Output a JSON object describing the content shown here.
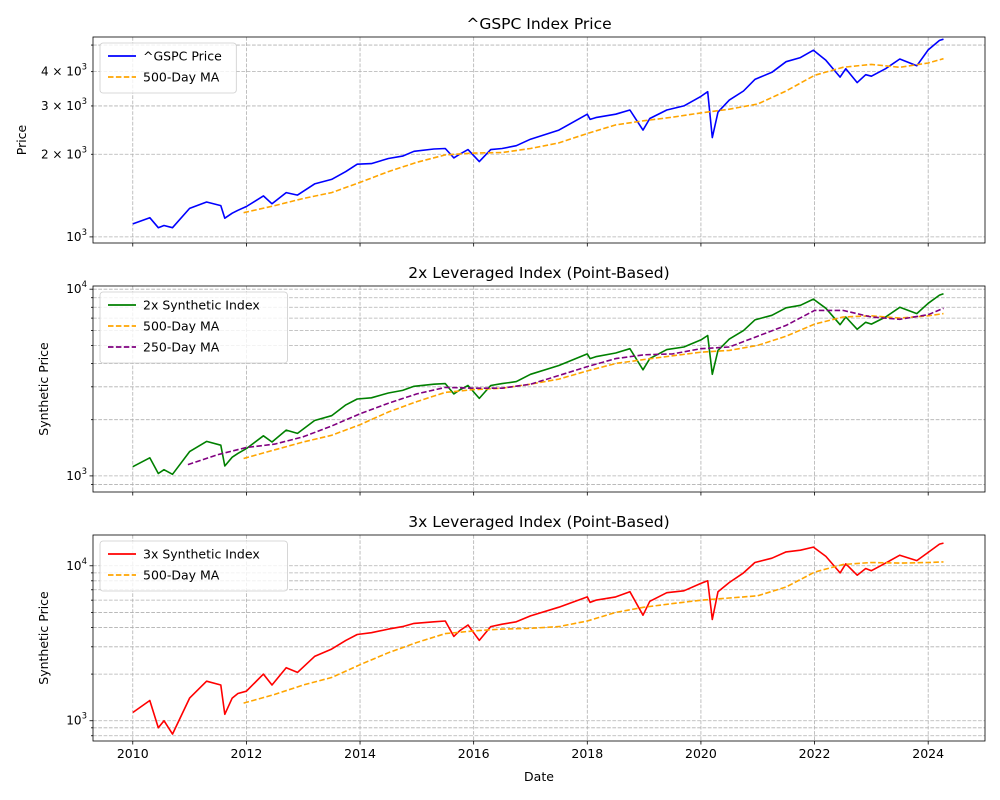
{
  "chart_data": [
    {
      "type": "line",
      "title": "^GSPC Index Price",
      "xlabel": "",
      "ylabel": "Price",
      "y_scale": "log",
      "ylim": [
        950,
        5350
      ],
      "y_ticks": [
        {
          "value": 1000,
          "base": "10",
          "exp": "3",
          "mult": ""
        },
        {
          "value": 2000,
          "base": "10",
          "exp": "3",
          "mult": "2 × "
        },
        {
          "value": 3000,
          "base": "10",
          "exp": "3",
          "mult": "3 × "
        },
        {
          "value": 4000,
          "base": "10",
          "exp": "3",
          "mult": "4 × "
        }
      ],
      "grid": true,
      "legend_position": "upper-left",
      "series": [
        {
          "name": "^GSPC Price",
          "color": "#0000ff",
          "style": "solid",
          "x": [
            2010.0,
            2010.3,
            2010.45,
            2010.55,
            2010.7,
            2011.0,
            2011.3,
            2011.55,
            2011.62,
            2011.75,
            2011.85,
            2012.0,
            2012.3,
            2012.45,
            2012.7,
            2012.9,
            2013.2,
            2013.5,
            2013.75,
            2013.95,
            2014.2,
            2014.5,
            2014.75,
            2014.95,
            2015.3,
            2015.5,
            2015.65,
            2015.75,
            2015.9,
            2016.1,
            2016.3,
            2016.5,
            2016.75,
            2017.0,
            2017.5,
            2018.0,
            2018.05,
            2018.15,
            2018.5,
            2018.75,
            2018.98,
            2019.1,
            2019.4,
            2019.7,
            2020.0,
            2020.12,
            2020.2,
            2020.3,
            2020.5,
            2020.75,
            2020.95,
            2021.25,
            2021.5,
            2021.75,
            2021.98,
            2022.2,
            2022.45,
            2022.55,
            2022.75,
            2022.9,
            2023.0,
            2023.25,
            2023.5,
            2023.8,
            2024.0,
            2024.2,
            2024.27
          ],
          "y": [
            1115,
            1175,
            1080,
            1100,
            1080,
            1270,
            1340,
            1300,
            1170,
            1220,
            1250,
            1290,
            1410,
            1320,
            1450,
            1420,
            1560,
            1620,
            1730,
            1840,
            1850,
            1930,
            1970,
            2050,
            2090,
            2100,
            1940,
            2000,
            2080,
            1880,
            2080,
            2100,
            2150,
            2270,
            2450,
            2800,
            2680,
            2720,
            2800,
            2900,
            2450,
            2700,
            2900,
            3000,
            3250,
            3380,
            2300,
            2850,
            3150,
            3400,
            3750,
            3980,
            4350,
            4500,
            4790,
            4400,
            3820,
            4100,
            3650,
            3900,
            3850,
            4100,
            4450,
            4200,
            4800,
            5200,
            5250
          ]
        },
        {
          "name": "500-Day MA",
          "color": "#ffa500",
          "style": "dashed",
          "x": [
            2011.95,
            2012.5,
            2013.0,
            2013.5,
            2014.0,
            2014.5,
            2015.0,
            2015.5,
            2016.0,
            2016.5,
            2017.0,
            2017.5,
            2018.0,
            2018.5,
            2019.0,
            2019.5,
            2020.0,
            2020.5,
            2021.0,
            2021.5,
            2022.0,
            2022.5,
            2023.0,
            2023.5,
            2024.0,
            2024.27
          ],
          "y": [
            1225,
            1300,
            1380,
            1450,
            1580,
            1730,
            1870,
            1990,
            2020,
            2030,
            2100,
            2200,
            2380,
            2560,
            2650,
            2730,
            2830,
            2920,
            3050,
            3400,
            3880,
            4150,
            4250,
            4150,
            4300,
            4460
          ]
        }
      ]
    },
    {
      "type": "line",
      "title": "2x Leveraged Index (Point-Based)",
      "xlabel": "",
      "ylabel": "Synthetic Price",
      "y_scale": "log",
      "ylim": [
        820,
        10400
      ],
      "y_ticks": [
        {
          "value": 1000,
          "base": "10",
          "exp": "3",
          "mult": ""
        },
        {
          "value": 10000,
          "base": "10",
          "exp": "4",
          "mult": ""
        }
      ],
      "grid": true,
      "legend_position": "upper-left",
      "series": [
        {
          "name": "2x Synthetic Index",
          "color": "#008000",
          "style": "solid",
          "x": [
            2010.0,
            2010.3,
            2010.45,
            2010.55,
            2010.7,
            2011.0,
            2011.3,
            2011.55,
            2011.62,
            2011.75,
            2011.85,
            2012.0,
            2012.3,
            2012.45,
            2012.7,
            2012.9,
            2013.2,
            2013.5,
            2013.75,
            2013.95,
            2014.2,
            2014.5,
            2014.75,
            2014.95,
            2015.3,
            2015.5,
            2015.65,
            2015.75,
            2015.9,
            2016.1,
            2016.3,
            2016.5,
            2016.75,
            2017.0,
            2017.5,
            2018.0,
            2018.05,
            2018.15,
            2018.5,
            2018.75,
            2018.98,
            2019.1,
            2019.4,
            2019.7,
            2020.0,
            2020.12,
            2020.2,
            2020.3,
            2020.5,
            2020.75,
            2020.95,
            2021.25,
            2021.5,
            2021.75,
            2021.98,
            2022.2,
            2022.45,
            2022.55,
            2022.75,
            2022.9,
            2023.0,
            2023.25,
            2023.5,
            2023.8,
            2024.0,
            2024.2,
            2024.27
          ],
          "y": [
            1120,
            1250,
            1030,
            1080,
            1020,
            1350,
            1530,
            1460,
            1130,
            1260,
            1320,
            1400,
            1640,
            1520,
            1760,
            1690,
            1980,
            2100,
            2400,
            2580,
            2620,
            2780,
            2870,
            3020,
            3100,
            3120,
            2750,
            2880,
            3050,
            2600,
            3050,
            3120,
            3200,
            3500,
            3900,
            4500,
            4250,
            4350,
            4550,
            4800,
            3700,
            4250,
            4750,
            4900,
            5350,
            5650,
            3500,
            4700,
            5400,
            6000,
            6850,
            7250,
            7950,
            8200,
            8850,
            7900,
            6450,
            7100,
            6100,
            6650,
            6500,
            7100,
            8000,
            7400,
            8400,
            9300,
            9450
          ]
        },
        {
          "name": "500-Day MA",
          "color": "#ffa500",
          "style": "dashed",
          "x": [
            2011.95,
            2012.5,
            2013.0,
            2013.5,
            2014.0,
            2014.5,
            2015.0,
            2015.5,
            2016.0,
            2016.5,
            2017.0,
            2017.5,
            2018.0,
            2018.5,
            2019.0,
            2019.5,
            2020.0,
            2020.5,
            2021.0,
            2021.5,
            2022.0,
            2022.5,
            2023.0,
            2023.5,
            2024.0,
            2024.27
          ],
          "y": [
            1240,
            1380,
            1520,
            1650,
            1880,
            2200,
            2500,
            2800,
            2900,
            2950,
            3100,
            3300,
            3650,
            4000,
            4200,
            4400,
            4600,
            4700,
            5000,
            5600,
            6500,
            7100,
            7200,
            7000,
            7200,
            7400
          ]
        },
        {
          "name": "250-Day MA",
          "color": "#800080",
          "style": "dashed",
          "x": [
            2010.97,
            2011.5,
            2012.0,
            2012.5,
            2013.0,
            2013.5,
            2014.0,
            2014.5,
            2015.0,
            2015.5,
            2016.0,
            2016.5,
            2017.0,
            2017.5,
            2018.0,
            2018.5,
            2019.0,
            2019.5,
            2020.0,
            2020.5,
            2021.0,
            2021.5,
            2022.0,
            2022.5,
            2023.0,
            2023.5,
            2024.0,
            2024.27
          ],
          "y": [
            1150,
            1300,
            1420,
            1480,
            1620,
            1850,
            2150,
            2450,
            2750,
            2980,
            2950,
            2950,
            3100,
            3450,
            3850,
            4250,
            4450,
            4500,
            4800,
            4900,
            5600,
            6400,
            7700,
            7700,
            7100,
            6900,
            7300,
            7900
          ]
        }
      ]
    },
    {
      "type": "line",
      "title": "3x Leveraged Index (Point-Based)",
      "xlabel": "Date",
      "ylabel": "Synthetic Price",
      "y_scale": "log",
      "ylim": [
        740,
        15800
      ],
      "y_ticks": [
        {
          "value": 1000,
          "base": "10",
          "exp": "3",
          "mult": ""
        },
        {
          "value": 10000,
          "base": "10",
          "exp": "4",
          "mult": ""
        }
      ],
      "x_ticks": [
        "2010",
        "2012",
        "2014",
        "2016",
        "2018",
        "2020",
        "2022",
        "2024"
      ],
      "xlim": [
        2009.3,
        2025.0
      ],
      "grid": true,
      "legend_position": "upper-left",
      "series": [
        {
          "name": "3x Synthetic Index",
          "color": "#ff0000",
          "style": "solid",
          "x": [
            2010.0,
            2010.3,
            2010.45,
            2010.55,
            2010.7,
            2011.0,
            2011.3,
            2011.55,
            2011.62,
            2011.75,
            2011.85,
            2012.0,
            2012.3,
            2012.45,
            2012.7,
            2012.9,
            2013.2,
            2013.5,
            2013.75,
            2013.95,
            2014.2,
            2014.5,
            2014.75,
            2014.95,
            2015.3,
            2015.5,
            2015.65,
            2015.75,
            2015.9,
            2016.1,
            2016.3,
            2016.5,
            2016.75,
            2017.0,
            2017.5,
            2018.0,
            2018.05,
            2018.15,
            2018.5,
            2018.75,
            2018.98,
            2019.1,
            2019.4,
            2019.7,
            2020.0,
            2020.12,
            2020.2,
            2020.3,
            2020.5,
            2020.75,
            2020.95,
            2021.25,
            2021.5,
            2021.75,
            2021.98,
            2022.2,
            2022.45,
            2022.55,
            2022.75,
            2022.9,
            2023.0,
            2023.25,
            2023.5,
            2023.8,
            2024.0,
            2024.2,
            2024.27
          ],
          "y": [
            1130,
            1350,
            900,
            1000,
            820,
            1400,
            1800,
            1700,
            1100,
            1400,
            1500,
            1550,
            2000,
            1700,
            2200,
            2050,
            2600,
            2900,
            3300,
            3600,
            3700,
            3900,
            4050,
            4250,
            4350,
            4400,
            3500,
            3800,
            4150,
            3300,
            4050,
            4200,
            4350,
            4750,
            5400,
            6300,
            5800,
            6000,
            6300,
            6800,
            4800,
            5900,
            6700,
            6900,
            7700,
            8000,
            4500,
            6800,
            7800,
            9000,
            10500,
            11200,
            12300,
            12600,
            13200,
            11500,
            9000,
            10300,
            8700,
            9600,
            9300,
            10400,
            11700,
            10800,
            12200,
            13800,
            14000
          ]
        },
        {
          "name": "500-Day MA",
          "color": "#ffa500",
          "style": "dashed",
          "x": [
            2011.95,
            2012.5,
            2013.0,
            2013.5,
            2014.0,
            2014.5,
            2015.0,
            2015.5,
            2016.0,
            2016.5,
            2017.0,
            2017.5,
            2018.0,
            2018.5,
            2019.0,
            2019.5,
            2020.0,
            2020.5,
            2021.0,
            2021.5,
            2022.0,
            2022.5,
            2023.0,
            2023.5,
            2024.0,
            2024.27
          ],
          "y": [
            1300,
            1480,
            1700,
            1900,
            2300,
            2750,
            3200,
            3650,
            3800,
            3900,
            3950,
            4050,
            4400,
            5000,
            5400,
            5700,
            6000,
            6200,
            6400,
            7300,
            9100,
            10200,
            10500,
            10400,
            10500,
            10600
          ]
        }
      ]
    }
  ]
}
